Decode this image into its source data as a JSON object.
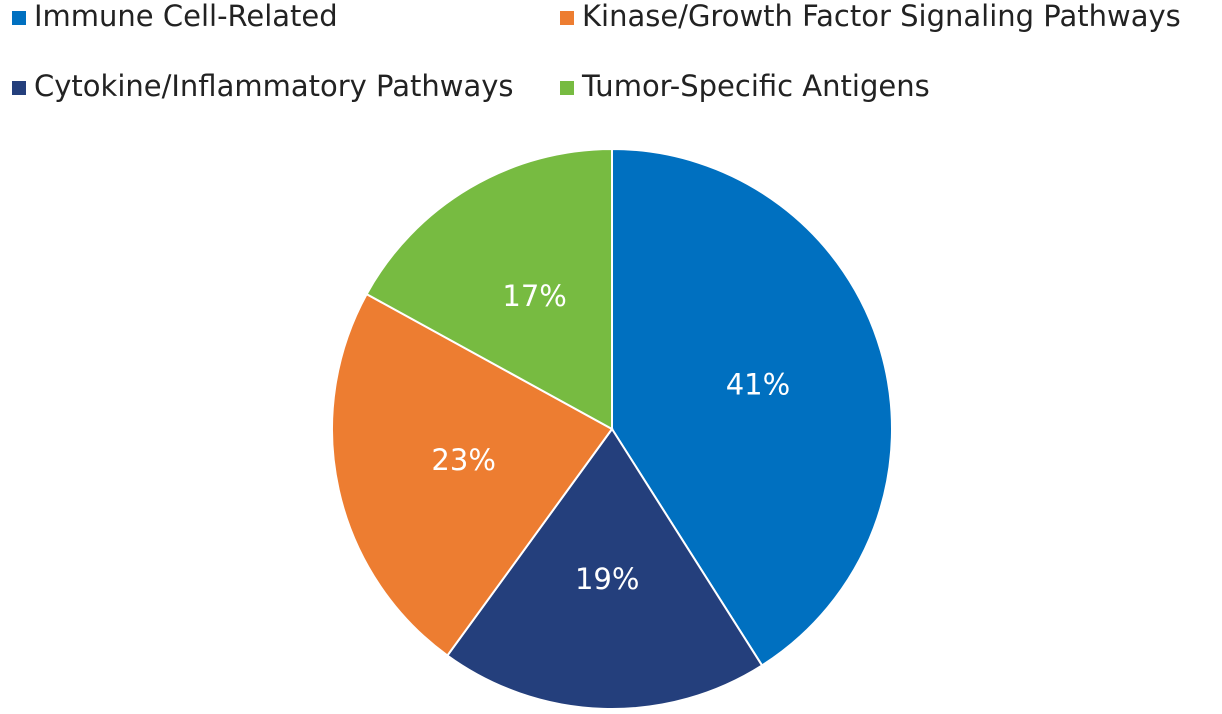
{
  "chart_data": {
    "type": "pie",
    "categories": [
      "Immune Cell-Related",
      "Cytokine/Inflammatory Pathways",
      "Kinase/Growth Factor Signaling Pathways",
      "Tumor-Specific Antigens"
    ],
    "values": [
      41,
      19,
      23,
      17
    ],
    "value_labels": [
      "41%",
      "19%",
      "23%",
      "17%"
    ],
    "colors": [
      "#0070c0",
      "#243f7c",
      "#ed7d31",
      "#77bb41"
    ]
  }
}
